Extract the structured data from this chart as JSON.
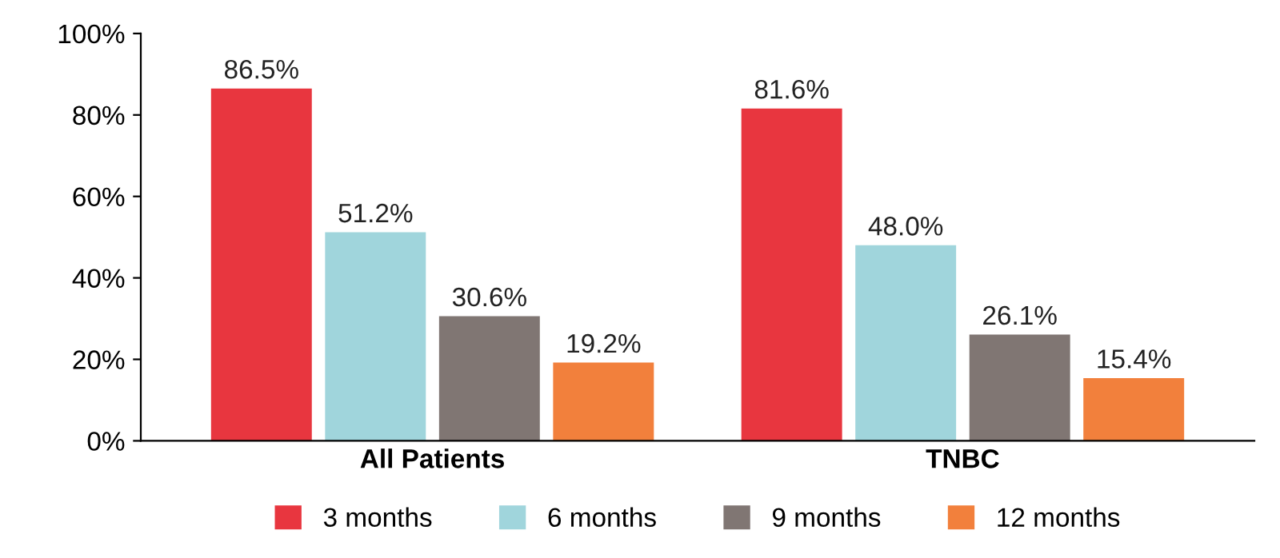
{
  "chart_data": {
    "type": "bar",
    "categories": [
      "All Patients",
      "TNBC"
    ],
    "series": [
      {
        "name": "3 months",
        "color": "#e8363f",
        "values": [
          86.5,
          81.6
        ],
        "value_labels": [
          "86.5%",
          "81.6%"
        ]
      },
      {
        "name": "6 months",
        "color": "#a0d5dc",
        "values": [
          51.2,
          48.0
        ],
        "value_labels": [
          "51.2%",
          "48.0%"
        ]
      },
      {
        "name": "9 months",
        "color": "#807673",
        "values": [
          30.6,
          26.1
        ],
        "value_labels": [
          "30.6%",
          "26.1%"
        ]
      },
      {
        "name": "12 months",
        "color": "#f2803c",
        "values": [
          19.2,
          15.4
        ],
        "value_labels": [
          "19.2%",
          "15.4%"
        ]
      }
    ],
    "ylim": [
      0,
      100
    ],
    "yticks": [
      {
        "value": 0,
        "label": "0%"
      },
      {
        "value": 20,
        "label": "20%"
      },
      {
        "value": 40,
        "label": "40%"
      },
      {
        "value": 60,
        "label": "60%"
      },
      {
        "value": 80,
        "label": "80%"
      },
      {
        "value": 100,
        "label": "100%"
      }
    ],
    "grid": false,
    "legend": "bottom"
  }
}
